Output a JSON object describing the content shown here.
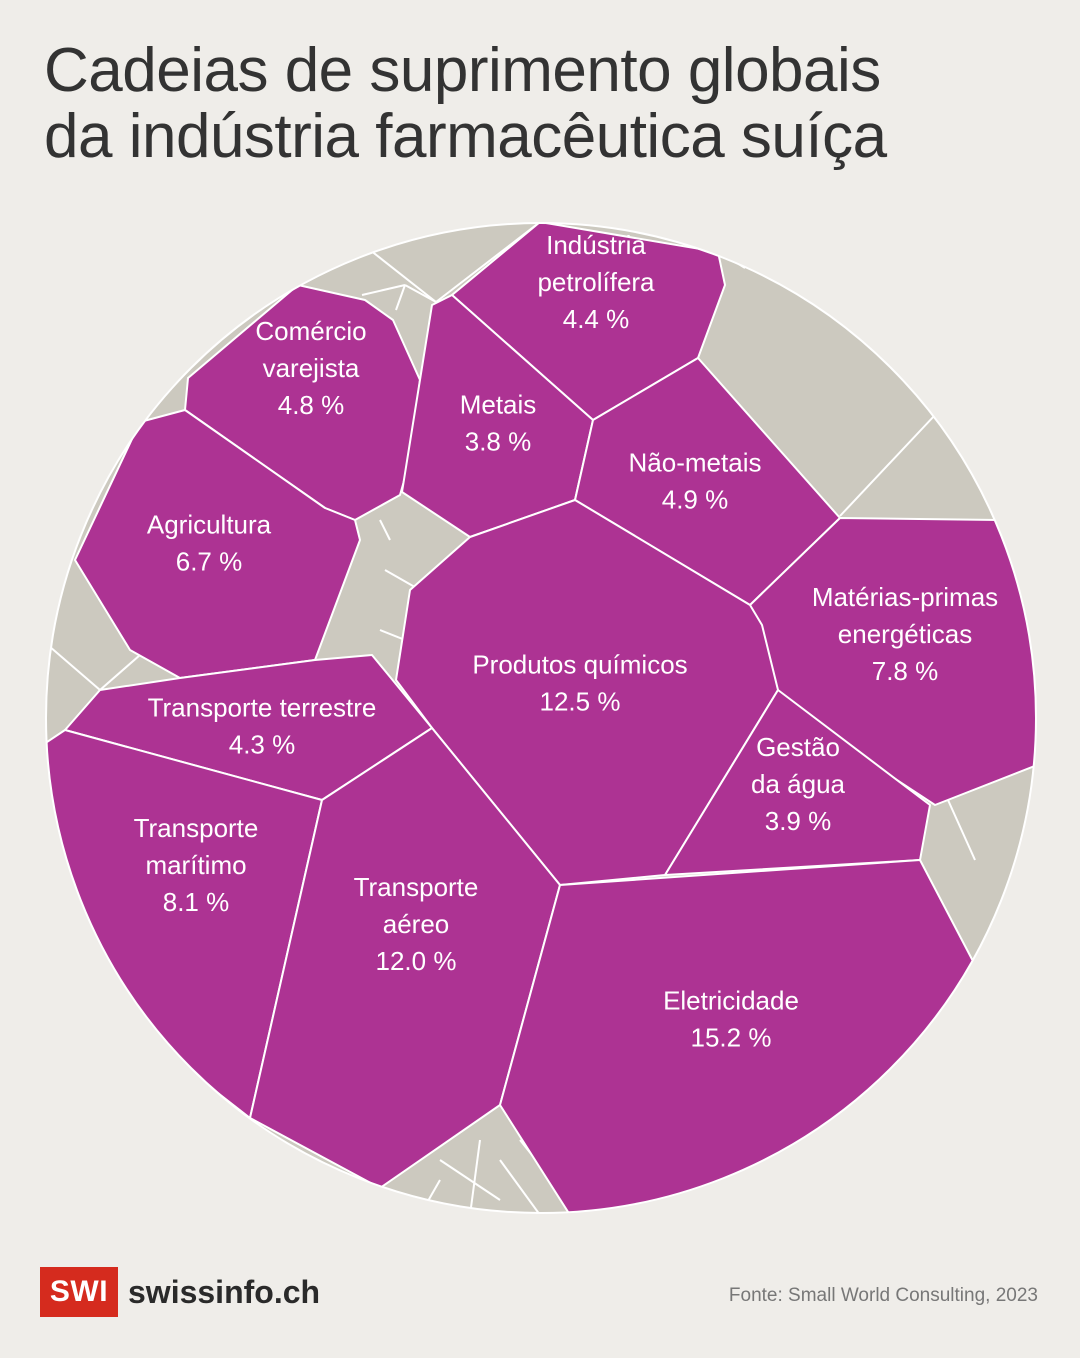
{
  "title_lines": [
    "Cadeias de suprimento globais",
    "da indústria farmacêutica suíça"
  ],
  "colors": {
    "primary": "#ad3393",
    "other": "#ccc9bf",
    "background": "#efede9",
    "border": "#ffffff"
  },
  "chart_data": {
    "type": "voronoi-treemap",
    "title": "Cadeias de suprimento globais da indústria farmacêutica suíça",
    "unit": "%",
    "cells": [
      {
        "name": "Indústria petrolífera",
        "lines": [
          "Indústria",
          "petrolífera"
        ],
        "value": 4.4,
        "value_label": "4.4 %"
      },
      {
        "name": "Comércio varejista",
        "lines": [
          "Comércio",
          "varejista"
        ],
        "value": 4.8,
        "value_label": "4.8 %"
      },
      {
        "name": "Metais",
        "lines": [
          "Metais"
        ],
        "value": 3.8,
        "value_label": "3.8 %"
      },
      {
        "name": "Não-metais",
        "lines": [
          "Não-metais"
        ],
        "value": 4.9,
        "value_label": "4.9 %"
      },
      {
        "name": "Agricultura",
        "lines": [
          "Agricultura"
        ],
        "value": 6.7,
        "value_label": "6.7 %"
      },
      {
        "name": "Matérias-primas energéticas",
        "lines": [
          "Matérias-primas",
          "energéticas"
        ],
        "value": 7.8,
        "value_label": "7.8 %"
      },
      {
        "name": "Produtos químicos",
        "lines": [
          "Produtos químicos"
        ],
        "value": 12.5,
        "value_label": "12.5 %"
      },
      {
        "name": "Transporte terrestre",
        "lines": [
          "Transporte terrestre"
        ],
        "value": 4.3,
        "value_label": "4.3 %"
      },
      {
        "name": "Gestão da água",
        "lines": [
          "Gestão",
          "da água"
        ],
        "value": 3.9,
        "value_label": "3.9 %"
      },
      {
        "name": "Transporte marítimo",
        "lines": [
          "Transporte",
          "marítimo"
        ],
        "value": 8.1,
        "value_label": "8.1 %"
      },
      {
        "name": "Transporte aéreo",
        "lines": [
          "Transporte",
          "aéreo"
        ],
        "value": 12.0,
        "value_label": "12.0 %"
      },
      {
        "name": "Eletricidade",
        "lines": [
          "Eletricidade"
        ],
        "value": 15.2,
        "value_label": "15.2 %"
      }
    ]
  },
  "footer": {
    "logo_mark": "SWI",
    "logo_text": "swissinfo.ch",
    "source": "Fonte: Small World Consulting, 2023"
  }
}
